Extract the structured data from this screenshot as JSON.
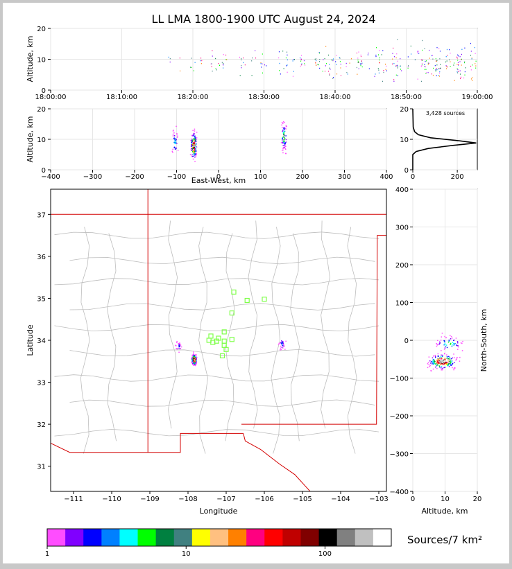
{
  "title": "LL LMA 1800-1900 UTC August 24, 2024",
  "colors": {
    "state_border": "#d40000",
    "county_border": "#bdbdbd",
    "station_marker": "#7fff4a",
    "background": "#c8c8c8",
    "panel": "#ffffff"
  },
  "chart_data": [
    {
      "id": "time_height",
      "type": "scatter",
      "ylabel": "Altitude, km",
      "ylim": [
        0,
        20
      ],
      "yticks": [
        "0",
        "10",
        "20"
      ],
      "xlim": [
        "18:00:00",
        "19:00:00"
      ],
      "xticks": [
        "18:00:00",
        "18:10:00",
        "18:20:00",
        "18:30:00",
        "18:40:00",
        "18:50:00",
        "19:00:00"
      ],
      "activity_start_minute": 16,
      "altitude_range_km": [
        3,
        18
      ],
      "grid": true
    },
    {
      "id": "ew_altitude",
      "type": "scatter",
      "xlabel": "East-West, km",
      "ylabel": "Altitude, km",
      "xlim": [
        -400,
        400
      ],
      "ylim": [
        0,
        20
      ],
      "xticks": [
        "−400",
        "−300",
        "−200",
        "−100",
        "0",
        "100",
        "200",
        "300",
        "400"
      ],
      "yticks": [
        "0",
        "10",
        "20"
      ],
      "clusters_km": [
        {
          "x": -105,
          "alt": 9,
          "count": 40
        },
        {
          "x": -60,
          "alt": 8,
          "count": 160
        },
        {
          "x": 155,
          "alt": 11,
          "count": 70
        }
      ],
      "grid": true
    },
    {
      "id": "altitude_histogram",
      "type": "line",
      "annotation": "3,428 sources",
      "xlim": [
        0,
        290
      ],
      "ylim": [
        0,
        20
      ],
      "xticks": [
        "0",
        "200"
      ],
      "yticks": [
        "0",
        "10",
        "20"
      ],
      "profile": [
        {
          "alt": 0,
          "count": 0
        },
        {
          "alt": 5,
          "count": 0
        },
        {
          "alt": 6,
          "count": 15
        },
        {
          "alt": 7,
          "count": 70
        },
        {
          "alt": 8,
          "count": 180
        },
        {
          "alt": 8.8,
          "count": 285
        },
        {
          "alt": 9.5,
          "count": 210
        },
        {
          "alt": 10.5,
          "count": 80
        },
        {
          "alt": 11.5,
          "count": 25
        },
        {
          "alt": 12.5,
          "count": 8
        },
        {
          "alt": 14,
          "count": 2
        },
        {
          "alt": 20,
          "count": 0
        }
      ],
      "grid": true
    },
    {
      "id": "plan_view",
      "type": "scatter",
      "xlabel": "Longitude",
      "ylabel": "Latitude",
      "xlim": [
        -111.6,
        -102.8
      ],
      "ylim": [
        30.4,
        37.6
      ],
      "xticks": [
        "−111",
        "−110",
        "−109",
        "−108",
        "−107",
        "−106",
        "−105",
        "−104",
        "−103"
      ],
      "yticks": [
        "31",
        "32",
        "33",
        "34",
        "35",
        "36",
        "37"
      ],
      "stations": [
        {
          "lon": -106.8,
          "lat": 35.15
        },
        {
          "lon": -106.45,
          "lat": 34.95
        },
        {
          "lon": -106.0,
          "lat": 34.98
        },
        {
          "lon": -106.85,
          "lat": 34.65
        },
        {
          "lon": -107.05,
          "lat": 34.2
        },
        {
          "lon": -107.2,
          "lat": 34.05
        },
        {
          "lon": -107.4,
          "lat": 34.1
        },
        {
          "lon": -107.25,
          "lat": 33.98
        },
        {
          "lon": -107.45,
          "lat": 34.0
        },
        {
          "lon": -107.05,
          "lat": 33.98
        },
        {
          "lon": -106.85,
          "lat": 34.02
        },
        {
          "lon": -107.35,
          "lat": 33.95
        },
        {
          "lon": -107.05,
          "lat": 33.88
        },
        {
          "lon": -107.0,
          "lat": 33.78
        },
        {
          "lon": -107.1,
          "lat": 33.63
        }
      ],
      "source_clusters": [
        {
          "lon": -107.85,
          "lat": 33.55,
          "count": 150
        },
        {
          "lon": -108.25,
          "lat": 33.85,
          "count": 25
        },
        {
          "lon": -105.55,
          "lat": 33.92,
          "count": 30
        }
      ]
    },
    {
      "id": "ns_altitude",
      "type": "scatter",
      "xlabel": "Altitude, km",
      "ylabel": "North-South, km",
      "xlim": [
        0,
        20
      ],
      "ylim": [
        -400,
        400
      ],
      "xticks": [
        "0",
        "10",
        "20"
      ],
      "yticks": [
        "−400",
        "−300",
        "−200",
        "−100",
        "0",
        "100",
        "200",
        "300",
        "400"
      ],
      "clusters_km": [
        {
          "alt": 9,
          "y": -55,
          "count": 180
        },
        {
          "alt": 11,
          "y": -8,
          "count": 60
        }
      ],
      "grid": true
    },
    {
      "id": "colorbar",
      "type": "table",
      "label": "Sources/7 km²",
      "tick_labels": [
        "1",
        "10",
        "100"
      ],
      "scale": "log",
      "range": [
        1,
        300
      ],
      "colors": [
        "#ff4dff",
        "#8000ff",
        "#0000ff",
        "#0080ff",
        "#00ffff",
        "#00ff00",
        "#008040",
        "#408080",
        "#ffff00",
        "#ffc080",
        "#ff8000",
        "#ff0080",
        "#ff0000",
        "#c00000",
        "#800000",
        "#000000",
        "#808080",
        "#c0c0c0",
        "#ffffff"
      ]
    }
  ]
}
